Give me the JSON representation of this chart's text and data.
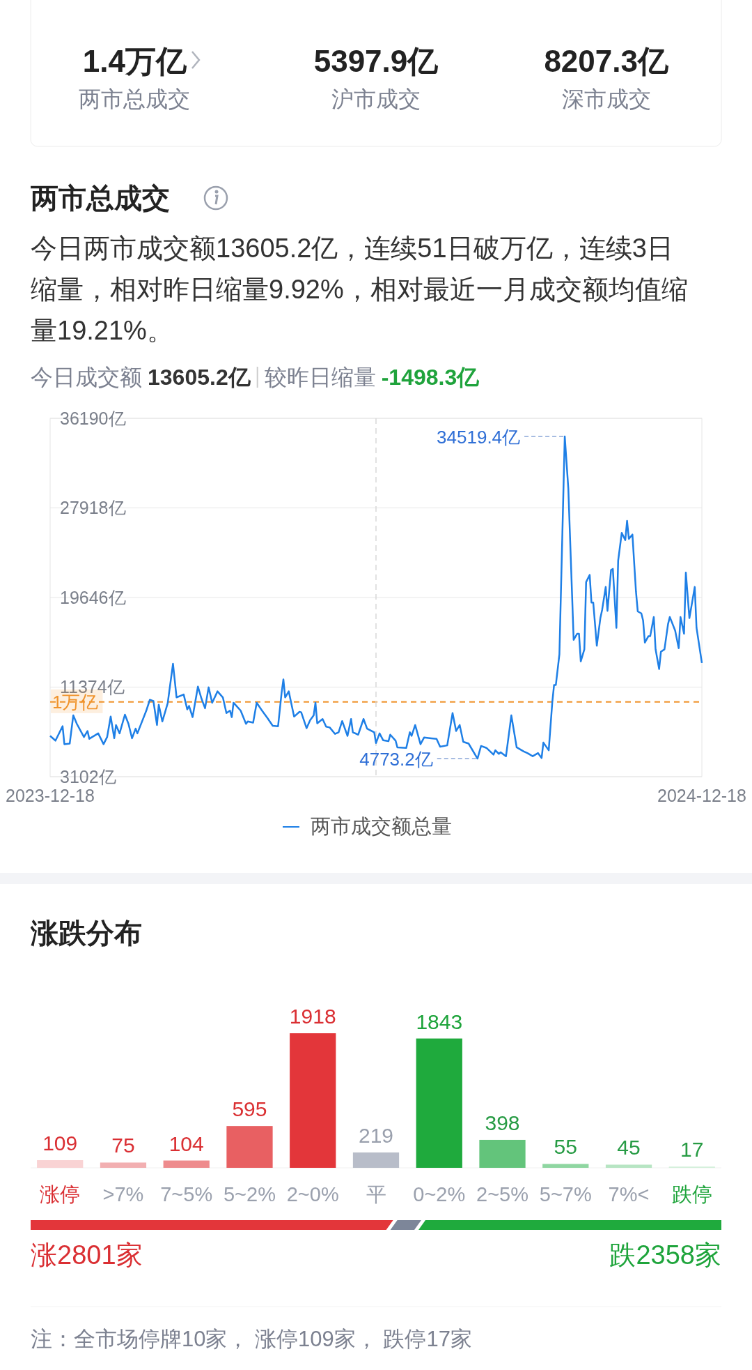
{
  "chart_data": [
    {
      "type": "other",
      "annotations": [
        "1.4万亿",
        "两市总成交",
        "5397.9亿",
        "沪市成交",
        "8207.3亿",
        "深市成交"
      ]
    },
    {
      "type": "line",
      "title": "两市总成交",
      "subtitle": "今日两市成交额13605.2亿，连续51日破万亿，连续3日缩量，相对昨日缩量9.92%，相对最近一月成交额均值缩量19.21%。",
      "annotations": [
        "今日成交额",
        "13605.2亿",
        "较昨日缩量",
        "-1498.3亿",
        {
          "text": "34519.4亿",
          "x": "2024-10-02",
          "y": 34519.4
        },
        {
          "text": "4773.2亿",
          "x": "2024-08-14",
          "y": 4773.2
        }
      ],
      "x": [
        "2023-12-18",
        "2023-12-21",
        "2023-12-25",
        "2023-12-26",
        "2023-12-29",
        "2023-12-31",
        "2024-01-02",
        "2024-01-06",
        "2024-01-08",
        "2024-01-09",
        "2024-01-14",
        "2024-01-17",
        "2024-01-19",
        "2024-01-21",
        "2024-01-23",
        "2024-01-24",
        "2024-01-26",
        "2024-01-29",
        "2024-01-31",
        "2024-02-02",
        "2024-02-04",
        "2024-02-05",
        "2024-02-10",
        "2024-02-12",
        "2024-02-14",
        "2024-02-16",
        "2024-02-17",
        "2024-02-19",
        "2024-02-22",
        "2024-02-25",
        "2024-02-27",
        "2024-03-02",
        "2024-03-04",
        "2024-03-05",
        "2024-03-07",
        "2024-03-10",
        "2024-03-12",
        "2024-03-14",
        "2024-03-16",
        "2024-03-18",
        "2024-03-21",
        "2024-03-24",
        "2024-03-26",
        "2024-03-28",
        "2024-03-29",
        "2024-03-30",
        "2024-04-03",
        "2024-04-06",
        "2024-04-07",
        "2024-04-10",
        "2024-04-12",
        "2024-04-15",
        "2024-04-18",
        "2024-04-21",
        "2024-04-24",
        "2024-04-26",
        "2024-04-27",
        "2024-04-28",
        "2024-04-30",
        "2024-05-03",
        "2024-05-06",
        "2024-05-07",
        "2024-05-10",
        "2024-05-12",
        "2024-05-14",
        "2024-05-15",
        "2024-05-16",
        "2024-05-19",
        "2024-05-21",
        "2024-05-23",
        "2024-05-26",
        "2024-05-28",
        "2024-05-30",
        "2024-06-02",
        "2024-06-04",
        "2024-06-05",
        "2024-06-08",
        "2024-06-11",
        "2024-06-13",
        "2024-06-17",
        "2024-06-18",
        "2024-06-20",
        "2024-06-22",
        "2024-06-25",
        "2024-06-26",
        "2024-06-29",
        "2024-06-30",
        "2024-07-05",
        "2024-07-07",
        "2024-07-08",
        "2024-07-10",
        "2024-07-13",
        "2024-07-15",
        "2024-07-19",
        "2024-07-22",
        "2024-07-24",
        "2024-07-28",
        "2024-07-31",
        "2024-08-02",
        "2024-08-04",
        "2024-08-06",
        "2024-08-09",
        "2024-08-14",
        "2024-08-16",
        "2024-08-19",
        "2024-08-23",
        "2024-08-24",
        "2024-08-26",
        "2024-08-27",
        "2024-08-30",
        "2024-09-02",
        "2024-09-05",
        "2024-09-09",
        "2024-09-11",
        "2024-09-14",
        "2024-09-17",
        "2024-09-19",
        "2024-09-20",
        "2024-09-23",
        "2024-09-25",
        "2024-09-26",
        "2024-09-27",
        "2024-09-29",
        "2024-10-02",
        "2024-10-04",
        "2024-10-07",
        "2024-10-09",
        "2024-10-10",
        "2024-10-11",
        "2024-10-13",
        "2024-10-14",
        "2024-10-16",
        "2024-10-17",
        "2024-10-18",
        "2024-10-20",
        "2024-10-22",
        "2024-10-23",
        "2024-10-25",
        "2024-10-26",
        "2024-10-28",
        "2024-10-29",
        "2024-10-31",
        "2024-11-01",
        "2024-11-03",
        "2024-11-05",
        "2024-11-06",
        "2024-11-07",
        "2024-11-09",
        "2024-11-11",
        "2024-11-12",
        "2024-11-14",
        "2024-11-15",
        "2024-11-16",
        "2024-11-18",
        "2024-11-19",
        "2024-11-21",
        "2024-11-22",
        "2024-11-24",
        "2024-11-25",
        "2024-11-27",
        "2024-11-29",
        "2024-11-30",
        "2024-12-03",
        "2024-12-05",
        "2024-12-06",
        "2024-12-08",
        "2024-12-09",
        "2024-12-11",
        "2024-12-14",
        "2024-12-15",
        "2024-12-18"
      ],
      "series": [
        {
          "name": "两市成交额总量",
          "color": "#1e7fe6",
          "values": [
            6870,
            6430,
            7760,
            6100,
            6160,
            8760,
            7980,
            6760,
            7320,
            6600,
            7100,
            6100,
            6760,
            8650,
            6650,
            7870,
            7100,
            8830,
            7980,
            6650,
            7540,
            7100,
            9200,
            10200,
            10090,
            7870,
            9750,
            8200,
            9870,
            13530,
            10420,
            10690,
            9310,
            9640,
            8600,
            11420,
            10310,
            9420,
            11350,
            9930,
            10980,
            10420,
            8980,
            9200,
            8600,
            9930,
            9200,
            7980,
            8200,
            8090,
            9930,
            9200,
            8530,
            7800,
            7760,
            10870,
            12080,
            10420,
            10980,
            8650,
            9090,
            9050,
            7580,
            8310,
            8760,
            9930,
            8030,
            8430,
            7720,
            7650,
            7050,
            7200,
            8240,
            6870,
            8430,
            7200,
            6980,
            8430,
            7540,
            7200,
            6210,
            7100,
            6470,
            6380,
            6980,
            6430,
            5810,
            5760,
            7200,
            6870,
            7870,
            6100,
            6720,
            6650,
            6600,
            5870,
            5990,
            8980,
            7320,
            7870,
            6320,
            6160,
            4773.2,
            5940,
            5760,
            5140,
            5540,
            5210,
            5360,
            4990,
            8760,
            5810,
            5430,
            5280,
            4990,
            5280,
            4830,
            6250,
            5540,
            9980,
            11570,
            11570,
            14410,
            34519.4,
            29720,
            15740,
            16300,
            16300,
            13750,
            14860,
            21070,
            21730,
            19180,
            19180,
            15190,
            17740,
            18510,
            20620,
            18410,
            22180,
            22290,
            16850,
            23060,
            25610,
            24950,
            26720,
            25060,
            25460,
            20180,
            18360,
            18180,
            17520,
            15480,
            16080,
            16080,
            17850,
            14860,
            13040,
            14640,
            14860,
            17190,
            17850,
            16590,
            14970,
            17850,
            16300,
            21950,
            17740,
            20620,
            16850,
            13605.2
          ]
        }
      ],
      "xlim": [
        "2023-12-18",
        "2024-12-18"
      ],
      "xticks": [
        {
          "value": "2023-12-18",
          "label": "2023-12-18"
        },
        {
          "value": "2024-12-18",
          "label": "2024-12-18"
        }
      ],
      "ylim": [
        3102,
        36190
      ],
      "yticks": [
        {
          "value": 3102,
          "label": "3102亿"
        },
        {
          "value": 11374,
          "label": "11374亿"
        },
        {
          "value": 19646,
          "label": "19646亿"
        },
        {
          "value": 27918,
          "label": "27918亿"
        },
        {
          "value": 36190,
          "label": "36190亿"
        }
      ],
      "grid": "y",
      "legend": "bottom",
      "ref_lines": [
        {
          "axis": "y",
          "value": 10000,
          "label": "1万亿",
          "color": "#f0932b",
          "line_style": "dashed"
        },
        {
          "axis": "x",
          "value": "2024-06-18",
          "color": "#d8d8d8",
          "line_style": "dashed"
        }
      ]
    },
    {
      "type": "bar",
      "title": "涨跌分布",
      "categories": [
        "涨停",
        ">7%",
        "7~5%",
        "5~2%",
        "2~0%",
        "平",
        "0~2%",
        "2~5%",
        "5~7%",
        "7%<",
        "跌停"
      ],
      "values": [
        109,
        75,
        104,
        595,
        1918,
        219,
        1843,
        398,
        55,
        45,
        17
      ],
      "colors": [
        "#f9d3d4",
        "#f2afb1",
        "#ee8b8d",
        "#e86062",
        "#e3363a",
        "#b8bdc9",
        "#1faa3d",
        "#63c47b",
        "#8fd6a1",
        "#b7e5c3",
        "#d3f0da"
      ],
      "data_labels": true,
      "annotations": [
        "涨2801家",
        "跌2358家",
        "注：全市场停牌10家， 涨停109家， 跌停17家"
      ]
    }
  ]
}
